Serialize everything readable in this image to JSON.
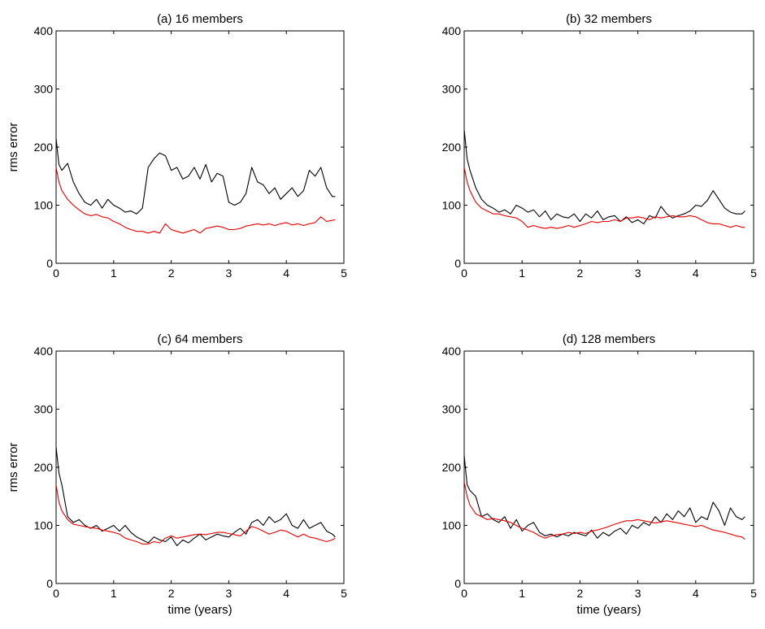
{
  "chart_data": [
    {
      "type": "line",
      "title": "(a) 16 members",
      "xlabel": "",
      "ylabel": "rms error",
      "xlim": [
        0,
        5
      ],
      "ylim": [
        0,
        400
      ],
      "xticks": [
        0,
        1,
        2,
        3,
        4,
        5
      ],
      "yticks": [
        0,
        100,
        200,
        300,
        400
      ],
      "grid": false,
      "series": [
        {
          "color": "#000000",
          "x": [
            0,
            0.05,
            0.1,
            0.2,
            0.3,
            0.4,
            0.5,
            0.6,
            0.7,
            0.8,
            0.9,
            1.0,
            1.1,
            1.2,
            1.3,
            1.4,
            1.5,
            1.6,
            1.7,
            1.8,
            1.9,
            2.0,
            2.1,
            2.2,
            2.3,
            2.4,
            2.5,
            2.6,
            2.7,
            2.8,
            2.9,
            3.0,
            3.1,
            3.2,
            3.3,
            3.4,
            3.5,
            3.6,
            3.7,
            3.8,
            3.9,
            4.0,
            4.1,
            4.2,
            4.3,
            4.4,
            4.5,
            4.6,
            4.7,
            4.8,
            4.85
          ],
          "y": [
            215,
            170,
            160,
            172,
            140,
            120,
            105,
            100,
            110,
            95,
            110,
            100,
            95,
            88,
            90,
            85,
            95,
            165,
            180,
            190,
            185,
            160,
            165,
            145,
            150,
            165,
            145,
            170,
            140,
            155,
            150,
            105,
            100,
            105,
            120,
            165,
            140,
            135,
            120,
            130,
            110,
            120,
            130,
            115,
            125,
            160,
            150,
            165,
            130,
            115,
            115
          ]
        },
        {
          "color": "#e00000",
          "x": [
            0,
            0.05,
            0.1,
            0.2,
            0.3,
            0.4,
            0.5,
            0.6,
            0.7,
            0.8,
            0.9,
            1.0,
            1.1,
            1.2,
            1.3,
            1.4,
            1.5,
            1.6,
            1.7,
            1.8,
            1.9,
            2.0,
            2.1,
            2.2,
            2.3,
            2.4,
            2.5,
            2.6,
            2.7,
            2.8,
            2.9,
            3.0,
            3.1,
            3.2,
            3.3,
            3.4,
            3.5,
            3.6,
            3.7,
            3.8,
            3.9,
            4.0,
            4.1,
            4.2,
            4.3,
            4.4,
            4.5,
            4.6,
            4.7,
            4.8,
            4.85
          ],
          "y": [
            165,
            140,
            125,
            110,
            100,
            92,
            85,
            82,
            84,
            80,
            78,
            72,
            68,
            62,
            58,
            55,
            55,
            52,
            55,
            52,
            68,
            58,
            55,
            52,
            55,
            58,
            52,
            60,
            62,
            64,
            62,
            58,
            58,
            60,
            64,
            66,
            68,
            66,
            68,
            65,
            68,
            70,
            66,
            68,
            65,
            68,
            70,
            80,
            72,
            74,
            75
          ]
        }
      ]
    },
    {
      "type": "line",
      "title": "(b) 32 members",
      "xlabel": "",
      "ylabel": "",
      "xlim": [
        0,
        5
      ],
      "ylim": [
        0,
        400
      ],
      "xticks": [
        0,
        1,
        2,
        3,
        4,
        5
      ],
      "yticks": [
        0,
        100,
        200,
        300,
        400
      ],
      "grid": false,
      "series": [
        {
          "color": "#000000",
          "x": [
            0,
            0.05,
            0.1,
            0.2,
            0.3,
            0.4,
            0.5,
            0.6,
            0.7,
            0.8,
            0.9,
            1.0,
            1.1,
            1.2,
            1.3,
            1.4,
            1.5,
            1.6,
            1.7,
            1.8,
            1.9,
            2.0,
            2.1,
            2.2,
            2.3,
            2.4,
            2.5,
            2.6,
            2.7,
            2.8,
            2.9,
            3.0,
            3.1,
            3.2,
            3.3,
            3.4,
            3.5,
            3.6,
            3.7,
            3.8,
            3.9,
            4.0,
            4.1,
            4.2,
            4.3,
            4.4,
            4.5,
            4.6,
            4.7,
            4.8,
            4.85
          ],
          "y": [
            230,
            180,
            160,
            130,
            110,
            100,
            95,
            88,
            92,
            85,
            100,
            95,
            88,
            92,
            80,
            90,
            75,
            85,
            80,
            78,
            85,
            72,
            85,
            78,
            90,
            75,
            80,
            82,
            72,
            80,
            70,
            75,
            68,
            82,
            78,
            98,
            85,
            78,
            82,
            85,
            90,
            100,
            98,
            108,
            125,
            110,
            95,
            88,
            85,
            85,
            90
          ]
        },
        {
          "color": "#e00000",
          "x": [
            0,
            0.05,
            0.1,
            0.2,
            0.3,
            0.4,
            0.5,
            0.6,
            0.7,
            0.8,
            0.9,
            1.0,
            1.1,
            1.2,
            1.3,
            1.4,
            1.5,
            1.6,
            1.7,
            1.8,
            1.9,
            2.0,
            2.1,
            2.2,
            2.3,
            2.4,
            2.5,
            2.6,
            2.7,
            2.8,
            2.9,
            3.0,
            3.1,
            3.2,
            3.3,
            3.4,
            3.5,
            3.6,
            3.7,
            3.8,
            3.9,
            4.0,
            4.1,
            4.2,
            4.3,
            4.4,
            4.5,
            4.6,
            4.7,
            4.8,
            4.85
          ],
          "y": [
            165,
            140,
            125,
            105,
            95,
            90,
            85,
            85,
            82,
            80,
            78,
            72,
            62,
            65,
            62,
            60,
            62,
            60,
            62,
            65,
            62,
            65,
            68,
            72,
            70,
            72,
            72,
            75,
            72,
            78,
            78,
            80,
            78,
            75,
            80,
            78,
            80,
            82,
            80,
            80,
            82,
            80,
            75,
            70,
            68,
            68,
            65,
            62,
            65,
            62,
            62
          ]
        }
      ]
    },
    {
      "type": "line",
      "title": "(c) 64 members",
      "xlabel": "time (years)",
      "ylabel": "rms error",
      "xlim": [
        0,
        5
      ],
      "ylim": [
        0,
        400
      ],
      "xticks": [
        0,
        1,
        2,
        3,
        4,
        5
      ],
      "yticks": [
        0,
        100,
        200,
        300,
        400
      ],
      "grid": false,
      "series": [
        {
          "color": "#000000",
          "x": [
            0,
            0.05,
            0.1,
            0.2,
            0.3,
            0.4,
            0.5,
            0.6,
            0.7,
            0.8,
            0.9,
            1.0,
            1.1,
            1.2,
            1.3,
            1.4,
            1.5,
            1.6,
            1.7,
            1.8,
            1.9,
            2.0,
            2.1,
            2.2,
            2.3,
            2.4,
            2.5,
            2.6,
            2.7,
            2.8,
            2.9,
            3.0,
            3.1,
            3.2,
            3.3,
            3.4,
            3.5,
            3.6,
            3.7,
            3.8,
            3.9,
            4.0,
            4.1,
            4.2,
            4.3,
            4.4,
            4.5,
            4.6,
            4.7,
            4.8,
            4.85
          ],
          "y": [
            235,
            190,
            170,
            115,
            105,
            110,
            100,
            95,
            100,
            90,
            95,
            100,
            90,
            100,
            88,
            80,
            75,
            70,
            80,
            75,
            72,
            80,
            65,
            75,
            70,
            78,
            85,
            75,
            80,
            85,
            82,
            80,
            88,
            95,
            85,
            105,
            110,
            100,
            115,
            105,
            110,
            120,
            100,
            95,
            110,
            95,
            100,
            105,
            90,
            85,
            80
          ]
        },
        {
          "color": "#e00000",
          "x": [
            0,
            0.05,
            0.1,
            0.2,
            0.3,
            0.4,
            0.5,
            0.6,
            0.7,
            0.8,
            0.9,
            1.0,
            1.1,
            1.2,
            1.3,
            1.4,
            1.5,
            1.6,
            1.7,
            1.8,
            1.9,
            2.0,
            2.1,
            2.2,
            2.3,
            2.4,
            2.5,
            2.6,
            2.7,
            2.8,
            2.9,
            3.0,
            3.1,
            3.2,
            3.3,
            3.4,
            3.5,
            3.6,
            3.7,
            3.8,
            3.9,
            4.0,
            4.1,
            4.2,
            4.3,
            4.4,
            4.5,
            4.6,
            4.7,
            4.8,
            4.85
          ],
          "y": [
            170,
            140,
            125,
            110,
            102,
            100,
            98,
            96,
            95,
            92,
            90,
            88,
            85,
            78,
            75,
            72,
            68,
            68,
            72,
            70,
            78,
            82,
            78,
            80,
            82,
            84,
            85,
            84,
            86,
            88,
            88,
            86,
            84,
            82,
            90,
            98,
            95,
            90,
            85,
            88,
            92,
            90,
            85,
            80,
            85,
            80,
            78,
            75,
            72,
            75,
            78
          ]
        }
      ]
    },
    {
      "type": "line",
      "title": "(d) 128 members",
      "xlabel": "time (years)",
      "ylabel": "",
      "xlim": [
        0,
        5
      ],
      "ylim": [
        0,
        400
      ],
      "xticks": [
        0,
        1,
        2,
        3,
        4,
        5
      ],
      "yticks": [
        0,
        100,
        200,
        300,
        400
      ],
      "grid": false,
      "series": [
        {
          "color": "#000000",
          "x": [
            0,
            0.05,
            0.1,
            0.2,
            0.3,
            0.4,
            0.5,
            0.6,
            0.7,
            0.8,
            0.9,
            1.0,
            1.1,
            1.2,
            1.3,
            1.4,
            1.5,
            1.6,
            1.7,
            1.8,
            1.9,
            2.0,
            2.1,
            2.2,
            2.3,
            2.4,
            2.5,
            2.6,
            2.7,
            2.8,
            2.9,
            3.0,
            3.1,
            3.2,
            3.3,
            3.4,
            3.5,
            3.6,
            3.7,
            3.8,
            3.9,
            4.0,
            4.1,
            4.2,
            4.3,
            4.4,
            4.5,
            4.6,
            4.7,
            4.8,
            4.85
          ],
          "y": [
            220,
            170,
            160,
            150,
            115,
            120,
            110,
            105,
            115,
            95,
            110,
            90,
            100,
            105,
            88,
            82,
            85,
            80,
            85,
            82,
            88,
            85,
            82,
            92,
            78,
            88,
            82,
            90,
            95,
            85,
            100,
            95,
            105,
            100,
            115,
            105,
            120,
            110,
            125,
            115,
            130,
            105,
            115,
            110,
            140,
            125,
            100,
            130,
            115,
            110,
            115
          ]
        },
        {
          "color": "#e00000",
          "x": [
            0,
            0.05,
            0.1,
            0.2,
            0.3,
            0.4,
            0.5,
            0.6,
            0.7,
            0.8,
            0.9,
            1.0,
            1.1,
            1.2,
            1.3,
            1.4,
            1.5,
            1.6,
            1.7,
            1.8,
            1.9,
            2.0,
            2.1,
            2.2,
            2.3,
            2.4,
            2.5,
            2.6,
            2.7,
            2.8,
            2.9,
            3.0,
            3.1,
            3.2,
            3.3,
            3.4,
            3.5,
            3.6,
            3.7,
            3.8,
            3.9,
            4.0,
            4.1,
            4.2,
            4.3,
            4.4,
            4.5,
            4.6,
            4.7,
            4.8,
            4.85
          ],
          "y": [
            175,
            150,
            135,
            120,
            115,
            110,
            112,
            110,
            108,
            105,
            100,
            95,
            92,
            88,
            82,
            78,
            82,
            84,
            85,
            88,
            86,
            88,
            86,
            90,
            92,
            95,
            98,
            102,
            105,
            108,
            108,
            110,
            108,
            106,
            104,
            106,
            108,
            106,
            104,
            102,
            100,
            98,
            100,
            96,
            92,
            90,
            88,
            85,
            82,
            80,
            76
          ]
        }
      ]
    }
  ]
}
